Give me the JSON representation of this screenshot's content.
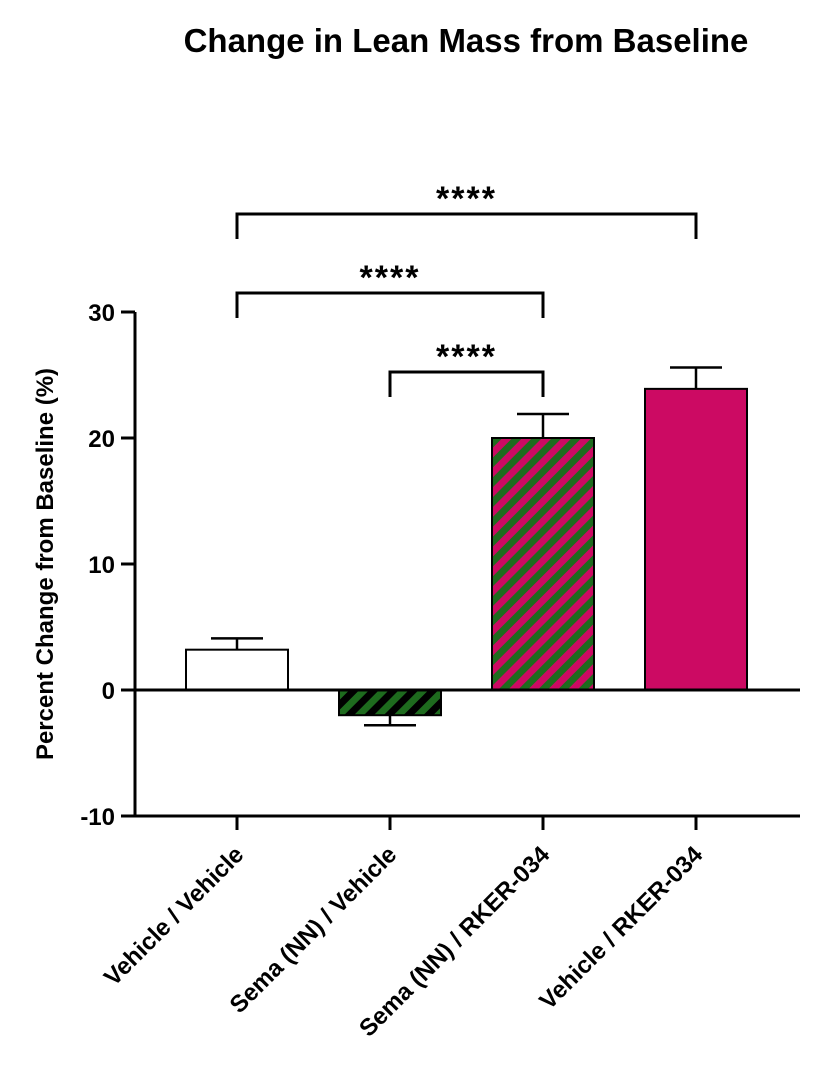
{
  "chart_data": {
    "type": "bar",
    "title": "Change in Lean Mass from Baseline",
    "xlabel": "",
    "ylabel": "Percent Change from Baseline (%)",
    "ylim": [
      -10,
      30
    ],
    "yticks": [
      -10,
      0,
      10,
      20,
      30
    ],
    "grid": false,
    "categories": [
      "Vehicle / Vehicle",
      "Sema (NN) / Vehicle",
      "Sema (NN) / RKER-034",
      "Vehicle / RKER-034"
    ],
    "values": [
      3.2,
      -2.0,
      20.0,
      23.9
    ],
    "errors": [
      0.9,
      0.8,
      1.9,
      1.7
    ],
    "fills": [
      "white",
      "green-black-stripes",
      "green-magenta-stripes",
      "magenta"
    ],
    "colors": {
      "green": "#1e6b1e",
      "magenta": "#cc0a63",
      "black": "#000000",
      "white": "#ffffff"
    },
    "significance": [
      {
        "from": 0,
        "to": 3,
        "label": "****"
      },
      {
        "from": 0,
        "to": 2,
        "label": "****"
      },
      {
        "from": 1,
        "to": 2,
        "label": "****"
      }
    ]
  }
}
